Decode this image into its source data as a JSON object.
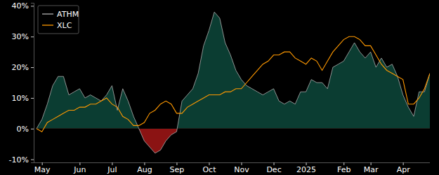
{
  "chart_data": {
    "type": "line",
    "categories": [
      null,
      "May",
      null,
      null,
      null,
      null,
      null,
      null,
      "Jun",
      null,
      null,
      null,
      null,
      null,
      "Jul",
      null,
      null,
      null,
      null,
      null,
      "Aug",
      null,
      null,
      null,
      null,
      null,
      "Sep",
      null,
      null,
      null,
      null,
      null,
      "Oct",
      null,
      null,
      null,
      null,
      null,
      "Nov",
      null,
      null,
      null,
      null,
      null,
      "Dec",
      null,
      null,
      null,
      null,
      null,
      "2025",
      null,
      null,
      null,
      null,
      null,
      null,
      "Feb",
      null,
      null,
      null,
      null,
      "Mar",
      null,
      null,
      null,
      null,
      null,
      "Apr",
      null,
      null,
      null,
      null,
      null
    ],
    "series": [
      {
        "name": "ATHM",
        "type": "area",
        "color": "#b0b0b0",
        "values": [
          0,
          3,
          8,
          14,
          17,
          17,
          11,
          12,
          13,
          10,
          11,
          10,
          9,
          11,
          14,
          6,
          13,
          9,
          4,
          0,
          -4,
          -6,
          -8,
          -7,
          -4,
          -2,
          -1,
          9,
          11,
          13,
          18,
          27,
          32,
          38,
          36,
          28,
          24,
          19,
          16,
          14,
          13,
          12,
          11,
          12,
          13,
          9,
          8,
          9,
          8,
          12,
          12,
          16,
          15,
          15,
          13,
          20,
          21,
          22,
          25,
          28,
          25,
          23,
          25,
          20,
          23,
          20,
          21,
          17,
          11,
          7,
          4,
          12,
          12,
          18
        ]
      },
      {
        "name": "XLC",
        "type": "line",
        "color": "#ff9900",
        "values": [
          0,
          -1,
          2,
          3,
          4,
          5,
          6,
          6,
          7,
          7,
          8,
          8,
          9,
          10,
          8,
          7,
          4,
          3,
          1,
          1,
          2,
          5,
          6,
          8,
          9,
          8,
          5,
          5,
          7,
          8,
          9,
          10,
          11,
          11,
          11,
          12,
          12,
          13,
          13,
          15,
          17,
          19,
          21,
          22,
          24,
          24,
          25,
          25,
          23,
          22,
          21,
          23,
          22,
          19,
          22,
          25,
          27,
          29,
          30,
          30,
          29,
          27,
          27,
          24,
          21,
          19,
          18,
          17,
          16,
          8,
          8,
          10,
          13,
          18
        ]
      }
    ],
    "ylim": [
      -11,
      41
    ],
    "yticks": [
      {
        "value": -10,
        "label": "-10%"
      },
      {
        "value": 0,
        "label": "0%"
      },
      {
        "value": 10,
        "label": "10%"
      },
      {
        "value": 20,
        "label": "20%"
      },
      {
        "value": 30,
        "label": "30%"
      },
      {
        "value": 40,
        "label": "40%"
      }
    ],
    "grid": false,
    "legend": "upper left"
  }
}
